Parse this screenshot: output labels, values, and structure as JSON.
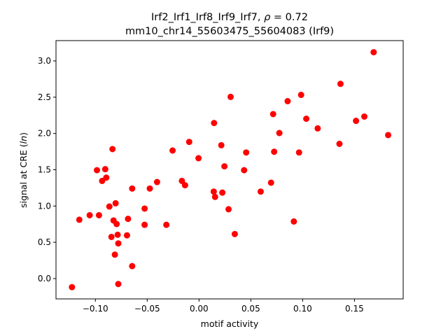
{
  "chart_data": {
    "type": "scatter",
    "title_line1": "Irf2_Irf1_Irf8_Irf9_Irf7, ",
    "title_rho_symbol": "ρ",
    "title_rho_value": " = 0.72",
    "title_line2": "mm10_chr14_55603475_55604083 (Irf9)",
    "xlabel": "motif activity",
    "ylabel_prefix": "signal at CRE (",
    "ylabel_italic": "ln",
    "ylabel_suffix": ")",
    "xlim": [
      -0.138,
      0.197
    ],
    "ylim": [
      -0.28,
      3.28
    ],
    "xticks": [
      -0.1,
      -0.05,
      0.0,
      0.05,
      0.1,
      0.15
    ],
    "xtick_labels": [
      "−0.10",
      "−0.05",
      "0.00",
      "0.05",
      "0.10",
      "0.15"
    ],
    "yticks": [
      0.0,
      0.5,
      1.0,
      1.5,
      2.0,
      2.5,
      3.0
    ],
    "ytick_labels": [
      "0.0",
      "0.5",
      "1.0",
      "1.5",
      "2.0",
      "2.5",
      "3.0"
    ],
    "marker_color": "#ff0000",
    "grid": false,
    "legend": "none",
    "points": [
      {
        "x": -0.1226,
        "y": -0.118
      },
      {
        "x": -0.1155,
        "y": 0.811
      },
      {
        "x": -0.1055,
        "y": 0.873
      },
      {
        "x": -0.0985,
        "y": 1.494
      },
      {
        "x": -0.0965,
        "y": 0.873
      },
      {
        "x": -0.0935,
        "y": 1.346
      },
      {
        "x": -0.0905,
        "y": 1.508
      },
      {
        "x": -0.0895,
        "y": 1.391
      },
      {
        "x": -0.0865,
        "y": 0.993
      },
      {
        "x": -0.0845,
        "y": 0.574
      },
      {
        "x": -0.0835,
        "y": 1.785
      },
      {
        "x": -0.0825,
        "y": 0.801
      },
      {
        "x": -0.0812,
        "y": 0.33
      },
      {
        "x": -0.0805,
        "y": 1.038
      },
      {
        "x": -0.0795,
        "y": 0.752
      },
      {
        "x": -0.0785,
        "y": 0.604
      },
      {
        "x": -0.0779,
        "y": -0.075
      },
      {
        "x": -0.0779,
        "y": 0.485
      },
      {
        "x": -0.0695,
        "y": 0.596
      },
      {
        "x": -0.0685,
        "y": 0.823
      },
      {
        "x": -0.0645,
        "y": 0.172
      },
      {
        "x": -0.0645,
        "y": 1.241
      },
      {
        "x": -0.0525,
        "y": 0.965
      },
      {
        "x": -0.0525,
        "y": 0.741
      },
      {
        "x": -0.0475,
        "y": 1.241
      },
      {
        "x": -0.0405,
        "y": 1.331
      },
      {
        "x": -0.0315,
        "y": 0.741
      },
      {
        "x": -0.0255,
        "y": 1.765
      },
      {
        "x": -0.0165,
        "y": 1.346
      },
      {
        "x": -0.0135,
        "y": 1.287
      },
      {
        "x": -0.0095,
        "y": 1.884
      },
      {
        "x": -0.0005,
        "y": 1.659
      },
      {
        "x": 0.0142,
        "y": 1.199
      },
      {
        "x": 0.0145,
        "y": 2.144
      },
      {
        "x": 0.0155,
        "y": 1.126
      },
      {
        "x": 0.0215,
        "y": 1.838
      },
      {
        "x": 0.0225,
        "y": 1.185
      },
      {
        "x": 0.0245,
        "y": 1.547
      },
      {
        "x": 0.0285,
        "y": 0.956
      },
      {
        "x": 0.0305,
        "y": 2.504
      },
      {
        "x": 0.0345,
        "y": 0.614
      },
      {
        "x": 0.0435,
        "y": 1.494
      },
      {
        "x": 0.0455,
        "y": 1.738
      },
      {
        "x": 0.0595,
        "y": 1.199
      },
      {
        "x": 0.0695,
        "y": 1.322
      },
      {
        "x": 0.0715,
        "y": 2.267
      },
      {
        "x": 0.0725,
        "y": 1.748
      },
      {
        "x": 0.0775,
        "y": 2.006
      },
      {
        "x": 0.0855,
        "y": 2.445
      },
      {
        "x": 0.0915,
        "y": 0.787
      },
      {
        "x": 0.0965,
        "y": 1.738
      },
      {
        "x": 0.0985,
        "y": 2.532
      },
      {
        "x": 0.1035,
        "y": 2.203
      },
      {
        "x": 0.1145,
        "y": 2.07
      },
      {
        "x": 0.1355,
        "y": 1.857
      },
      {
        "x": 0.1365,
        "y": 2.684
      },
      {
        "x": 0.1515,
        "y": 2.174
      },
      {
        "x": 0.1595,
        "y": 2.233
      },
      {
        "x": 0.1685,
        "y": 3.12
      },
      {
        "x": 0.1825,
        "y": 1.978
      }
    ]
  }
}
